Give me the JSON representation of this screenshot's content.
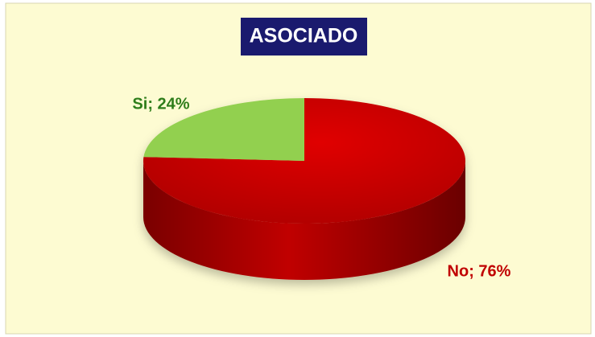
{
  "chart_data": {
    "type": "pie",
    "title": "ASOCIADO",
    "values": [
      76,
      24
    ],
    "value_labels": [
      "No; 76%",
      "Si; 24%"
    ],
    "colors": [
      "#c00000",
      "#92d050"
    ],
    "label_colors": [
      "#c00000",
      "#2e7d1a"
    ]
  }
}
